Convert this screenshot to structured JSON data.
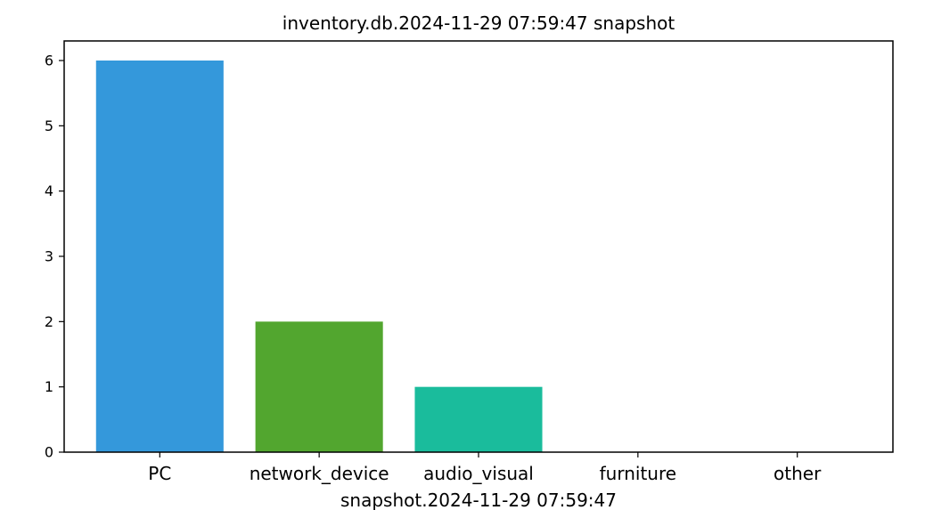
{
  "chart_data": {
    "type": "bar",
    "title": "inventory.db.2024-11-29 07:59:47 snapshot",
    "xlabel": "snapshot.2024-11-29 07:59:47",
    "ylabel": "",
    "categories": [
      "PC",
      "network_device",
      "audio_visual",
      "furniture",
      "other"
    ],
    "values": [
      6,
      2,
      1,
      0,
      0
    ],
    "colors": [
      "#3498db",
      "#52a62f",
      "#1abc9c",
      "#1abc9c",
      "#1abc9c"
    ],
    "ylim": [
      0,
      6.3
    ],
    "yticks": [
      0,
      1,
      2,
      3,
      4,
      5,
      6
    ],
    "ytick_labels": [
      "0",
      "1",
      "2",
      "3",
      "4",
      "5",
      "6"
    ],
    "grid": false,
    "legend": "none"
  }
}
